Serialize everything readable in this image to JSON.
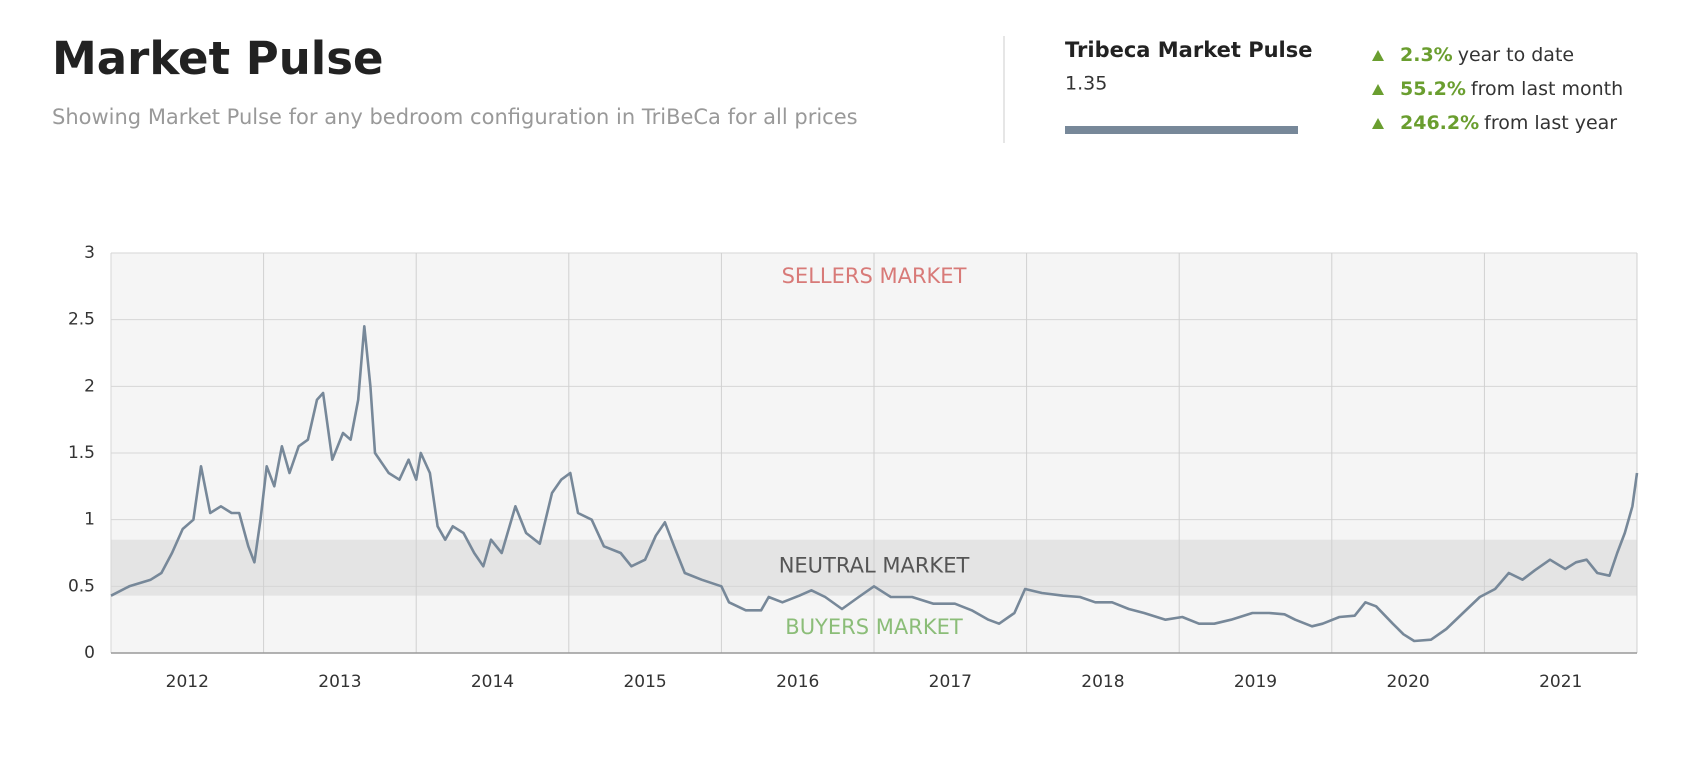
{
  "header": {
    "title": "Market Pulse",
    "subtitle": "Showing Market Pulse for any bedroom configuration in TriBeCa for all prices"
  },
  "panel": {
    "title": "Tribeca Market Pulse",
    "value": "1.35",
    "stats": [
      {
        "value": "2.3%",
        "label": "year to date"
      },
      {
        "value": "55.2%",
        "label": "from last month"
      },
      {
        "value": "246.2%",
        "label": "from last year"
      }
    ]
  },
  "chart_data": {
    "type": "line",
    "annotations": {
      "sellers": "SELLERS MARKET",
      "neutral": "NEUTRAL MARKET",
      "buyers": "BUYERS MARKET"
    },
    "neutral_band": [
      0.43,
      0.85
    ],
    "x": [
      2011.5,
      2011.62,
      2011.76,
      2011.83,
      2011.9,
      2011.97,
      2012.04,
      2012.09,
      2012.15,
      2012.22,
      2012.29,
      2012.34,
      2012.4,
      2012.44,
      2012.48,
      2012.52,
      2012.57,
      2012.62,
      2012.67,
      2012.73,
      2012.79,
      2012.85,
      2012.89,
      2012.95,
      2013.02,
      2013.07,
      2013.12,
      2013.16,
      2013.2,
      2013.23,
      2013.32,
      2013.39,
      2013.45,
      2013.5,
      2013.53,
      2013.59,
      2013.64,
      2013.69,
      2013.74,
      2013.81,
      2013.88,
      2013.94,
      2013.99,
      2014.06,
      2014.15,
      2014.22,
      2014.31,
      2014.39,
      2014.45,
      2014.51,
      2014.56,
      2014.65,
      2014.73,
      2014.84,
      2014.91,
      2015.0,
      2015.07,
      2015.13,
      2015.19,
      2015.26,
      2015.37,
      2015.5,
      2015.55,
      2015.66,
      2015.76,
      2015.81,
      2015.9,
      2016.01,
      2016.09,
      2016.18,
      2016.29,
      2016.4,
      2016.5,
      2016.61,
      2016.75,
      2016.89,
      2017.03,
      2017.14,
      2017.25,
      2017.32,
      2017.42,
      2017.49,
      2017.6,
      2017.74,
      2017.85,
      2017.95,
      2018.06,
      2018.17,
      2018.27,
      2018.41,
      2018.52,
      2018.63,
      2018.73,
      2018.84,
      2018.98,
      2019.09,
      2019.19,
      2019.26,
      2019.37,
      2019.44,
      2019.55,
      2019.65,
      2019.72,
      2019.79,
      2019.9,
      2019.97,
      2020.04,
      2020.15,
      2020.25,
      2020.36,
      2020.47,
      2020.57,
      2020.66,
      2020.75,
      2020.83,
      2020.93,
      2021.03,
      2021.1,
      2021.17,
      2021.24,
      2021.32,
      2021.37,
      2021.42,
      2021.47,
      2021.5
    ],
    "series": [
      {
        "name": "Market Pulse",
        "color": "#778899",
        "values": [
          0.43,
          0.5,
          0.55,
          0.6,
          0.75,
          0.93,
          1.0,
          1.4,
          1.05,
          1.1,
          1.05,
          1.05,
          0.8,
          0.68,
          1.0,
          1.4,
          1.25,
          1.55,
          1.35,
          1.55,
          1.6,
          1.9,
          1.95,
          1.45,
          1.65,
          1.6,
          1.9,
          2.45,
          2.0,
          1.5,
          1.35,
          1.3,
          1.45,
          1.3,
          1.5,
          1.35,
          0.95,
          0.85,
          0.95,
          0.9,
          0.75,
          0.65,
          0.85,
          0.75,
          1.1,
          0.9,
          0.82,
          1.2,
          1.3,
          1.35,
          1.05,
          1.0,
          0.8,
          0.75,
          0.65,
          0.7,
          0.88,
          0.98,
          0.8,
          0.6,
          0.55,
          0.5,
          0.38,
          0.32,
          0.32,
          0.42,
          0.38,
          0.43,
          0.47,
          0.42,
          0.33,
          0.42,
          0.5,
          0.42,
          0.42,
          0.37,
          0.37,
          0.32,
          0.25,
          0.22,
          0.3,
          0.48,
          0.45,
          0.43,
          0.42,
          0.38,
          0.38,
          0.33,
          0.3,
          0.25,
          0.27,
          0.22,
          0.22,
          0.25,
          0.3,
          0.3,
          0.29,
          0.25,
          0.2,
          0.22,
          0.27,
          0.28,
          0.38,
          0.35,
          0.22,
          0.14,
          0.09,
          0.1,
          0.18,
          0.3,
          0.42,
          0.48,
          0.6,
          0.55,
          0.62,
          0.7,
          0.63,
          0.68,
          0.7,
          0.6,
          0.58,
          0.75,
          0.9,
          1.1,
          1.35
        ]
      }
    ],
    "xlim": [
      2011.5,
      2021.5
    ],
    "xticks": [
      2012,
      2013,
      2014,
      2015,
      2016,
      2017,
      2018,
      2019,
      2020,
      2021
    ],
    "ylim": [
      0,
      3
    ],
    "yticks": [
      0,
      0.5,
      1,
      1.5,
      2,
      2.5,
      3
    ],
    "grid": true
  }
}
